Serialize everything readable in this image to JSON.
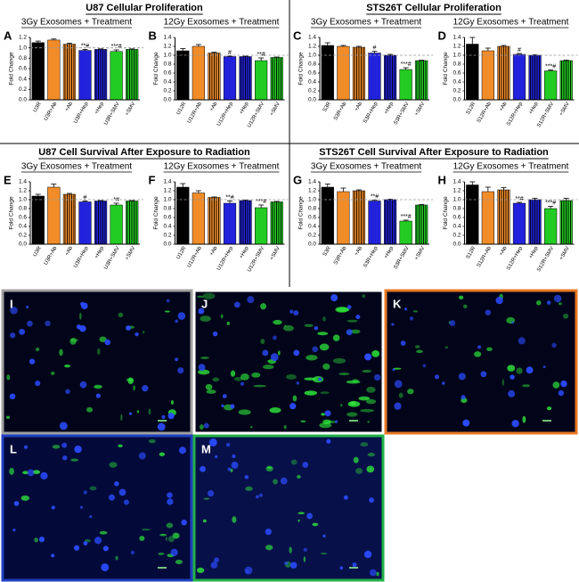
{
  "sections": [
    "U87 Cellular Proliferation",
    "STS26T Cellular Proliferation",
    "U87 Cell Survival After Exposure to Radiation",
    "STS26T Cell Survival After Exposure to Radiation"
  ],
  "chart_data": [
    {
      "type": "bar",
      "panel": "A",
      "title": "3Gy Exosomes + Treatment",
      "y_label": "Fold Change",
      "categories": [
        "U3R",
        "U3R+Ab",
        "+Ab",
        "U3R+Hep",
        "+Hep",
        "U3R+SMV",
        "+SMV"
      ],
      "values": [
        1.1,
        1.15,
        1.07,
        0.95,
        0.97,
        0.93,
        0.97
      ],
      "errors": [
        0.03,
        0.02,
        0.02,
        0.02,
        0.01,
        0.03,
        0.01
      ],
      "annotations": [
        null,
        null,
        null,
        "**#",
        null,
        "***#",
        null
      ],
      "colors": [
        "#000000",
        "#f28c28",
        "#f28c28",
        "#2222dd",
        "#2222dd",
        "#22cc22",
        "#22cc22"
      ],
      "striped": [
        false,
        false,
        true,
        false,
        true,
        false,
        true
      ],
      "reference_line": 1,
      "ylim": [
        0,
        1.2
      ],
      "yticks": [
        {
          "value": 0,
          "label": "0.0"
        },
        0.2,
        0.4,
        0.6,
        0.8,
        {
          "value": 1,
          "label": "1.0"
        },
        1.2
      ]
    },
    {
      "type": "bar",
      "panel": "B",
      "title": "12Gy Exosomes + Treatment",
      "y_label": "Fold Change",
      "categories": [
        "U12R",
        "U12R+Ab",
        "+Ab",
        "U12R+Hep",
        "+Hep",
        "U12R+SMV",
        "+SMV"
      ],
      "values": [
        1.1,
        1.2,
        1.05,
        0.97,
        0.97,
        0.88,
        0.95
      ],
      "errors": [
        0.05,
        0.04,
        0.02,
        0.01,
        0.01,
        0.06,
        0.01
      ],
      "annotations": [
        null,
        null,
        null,
        "#",
        null,
        "**#",
        null
      ],
      "colors": [
        "#000000",
        "#f28c28",
        "#f28c28",
        "#2222dd",
        "#2222dd",
        "#22cc22",
        "#22cc22"
      ],
      "striped": [
        false,
        false,
        true,
        false,
        true,
        false,
        true
      ],
      "reference_line": 1,
      "ylim": [
        0,
        1.4
      ],
      "yticks": [
        {
          "value": 0,
          "label": "0.0"
        },
        0.2,
        0.4,
        0.6,
        0.8,
        {
          "value": 1,
          "label": "1.0"
        },
        1.2,
        1.4
      ]
    },
    {
      "type": "bar",
      "panel": "C",
      "title": "3Gy Exosomes + Treatment",
      "y_label": "Fold Change",
      "categories": [
        "S3R",
        "S3R+Ab",
        "+Ab",
        "S3R+Hep",
        "+Hep",
        "S3R+SMV",
        "+SMV"
      ],
      "values": [
        1.22,
        1.2,
        1.18,
        1.05,
        1.0,
        0.68,
        0.88
      ],
      "errors": [
        0.06,
        0.02,
        0.02,
        0.04,
        0.02,
        0.04,
        0.01
      ],
      "annotations": [
        null,
        null,
        null,
        "#",
        null,
        "***#",
        null
      ],
      "colors": [
        "#000000",
        "#f28c28",
        "#f28c28",
        "#2222dd",
        "#2222dd",
        "#22cc22",
        "#22cc22"
      ],
      "striped": [
        false,
        false,
        true,
        false,
        true,
        false,
        true
      ],
      "reference_line": 1,
      "ylim": [
        0,
        1.4
      ],
      "yticks": [
        {
          "value": 0,
          "label": "0.0"
        },
        0.2,
        0.4,
        0.6,
        0.8,
        {
          "value": 1,
          "label": "1.0"
        },
        1.2,
        1.4
      ]
    },
    {
      "type": "bar",
      "panel": "D",
      "title": "12Gy Exosomes + Treatment",
      "y_label": "Fold Change",
      "categories": [
        "S12R",
        "S12R+Ab",
        "+Ab",
        "S12R+Hep",
        "+Hep",
        "S12R+SMV",
        "+SMV"
      ],
      "values": [
        1.25,
        1.1,
        1.2,
        1.02,
        1.0,
        0.65,
        0.88
      ],
      "errors": [
        0.15,
        0.06,
        0.02,
        0.02,
        0.01,
        0.02,
        0.01
      ],
      "annotations": [
        null,
        null,
        null,
        "#",
        null,
        "***#",
        null
      ],
      "colors": [
        "#000000",
        "#f28c28",
        "#f28c28",
        "#2222dd",
        "#2222dd",
        "#22cc22",
        "#22cc22"
      ],
      "striped": [
        false,
        false,
        true,
        false,
        true,
        false,
        true
      ],
      "reference_line": 1,
      "ylim": [
        0,
        1.4
      ],
      "yticks": [
        {
          "value": 0,
          "label": "0.0"
        },
        0.2,
        0.4,
        0.6,
        0.8,
        {
          "value": 1,
          "label": "1.0"
        },
        1.2,
        1.4
      ]
    },
    {
      "type": "bar",
      "panel": "E",
      "title": "3Gy Exosomes + Treatment",
      "y_label": "Fold Change",
      "categories": [
        "U3R",
        "U3R+Ab",
        "+Ab",
        "U3R+Hep",
        "+Hep",
        "U3R+SMV",
        "+SMV"
      ],
      "values": [
        1.08,
        1.28,
        1.12,
        0.95,
        0.97,
        0.88,
        0.97
      ],
      "errors": [
        0.04,
        0.07,
        0.02,
        0.02,
        0.01,
        0.04,
        0.01
      ],
      "annotations": [
        null,
        null,
        null,
        "#",
        null,
        "*#",
        null
      ],
      "colors": [
        "#000000",
        "#f28c28",
        "#f28c28",
        "#2222dd",
        "#2222dd",
        "#22cc22",
        "#22cc22"
      ],
      "striped": [
        false,
        false,
        true,
        false,
        true,
        false,
        true
      ],
      "reference_line": 1,
      "ylim": [
        0,
        1.4
      ],
      "yticks": [
        {
          "value": 0,
          "label": "0.0"
        },
        0.2,
        0.4,
        0.6,
        0.8,
        {
          "value": 1,
          "label": "1.0"
        },
        1.2,
        1.4
      ]
    },
    {
      "type": "bar",
      "panel": "F",
      "title": "12Gy Exosomes + Treatment",
      "y_label": "Fold Change",
      "categories": [
        "U12R",
        "U12R+Ab",
        "+Ab",
        "U12R+Hep",
        "+Hep",
        "U12R+SMV",
        "+SMV"
      ],
      "values": [
        1.28,
        1.15,
        1.05,
        0.92,
        0.98,
        0.82,
        0.95
      ],
      "errors": [
        0.08,
        0.05,
        0.01,
        0.05,
        0.01,
        0.06,
        0.01
      ],
      "annotations": [
        null,
        null,
        null,
        "**#",
        null,
        "***#",
        null
      ],
      "colors": [
        "#000000",
        "#f28c28",
        "#f28c28",
        "#2222dd",
        "#2222dd",
        "#22cc22",
        "#22cc22"
      ],
      "striped": [
        false,
        false,
        true,
        false,
        true,
        false,
        true
      ],
      "reference_line": 1,
      "ylim": [
        0,
        1.4
      ],
      "yticks": [
        {
          "value": 0,
          "label": "0.0"
        },
        0.2,
        0.4,
        0.6,
        0.8,
        {
          "value": 1,
          "label": "1.0"
        },
        1.2,
        1.4
      ]
    },
    {
      "type": "bar",
      "panel": "G",
      "title": "3Gy Exosomes + Treatment",
      "y_label": "Fold Change",
      "categories": [
        "S3R",
        "S3R+Ab",
        "+Ab",
        "S3R+Hep",
        "+Hep",
        "S3R+SMV",
        "+SMV"
      ],
      "values": [
        1.28,
        1.18,
        1.2,
        0.97,
        1.0,
        0.52,
        0.88
      ],
      "errors": [
        0.07,
        0.08,
        0.02,
        0.02,
        0.01,
        0.02,
        0.01
      ],
      "annotations": [
        null,
        null,
        null,
        "**#",
        null,
        "***#",
        null
      ],
      "colors": [
        "#000000",
        "#f28c28",
        "#f28c28",
        "#2222dd",
        "#2222dd",
        "#22cc22",
        "#22cc22"
      ],
      "striped": [
        false,
        false,
        true,
        false,
        true,
        false,
        true
      ],
      "reference_line": 1,
      "ylim": [
        0,
        1.4
      ],
      "yticks": [
        {
          "value": 0,
          "label": "0.0"
        },
        0.2,
        0.4,
        0.6,
        0.8,
        {
          "value": 1,
          "label": "1.0"
        },
        1.2,
        1.4
      ]
    },
    {
      "type": "bar",
      "panel": "H",
      "title": "12Gy Exosomes + Treatment",
      "y_label": "Fold Change",
      "categories": [
        "S12R",
        "S12R+Ab",
        "+Ab",
        "S12R+Hep",
        "+Hep",
        "S12R+SMV",
        "+SMV"
      ],
      "values": [
        1.33,
        1.18,
        1.22,
        0.92,
        1.0,
        0.8,
        0.98
      ],
      "errors": [
        0.07,
        0.1,
        0.05,
        0.02,
        0.03,
        0.05,
        0.05
      ],
      "annotations": [
        null,
        null,
        null,
        "**#",
        null,
        "***#",
        null
      ],
      "colors": [
        "#000000",
        "#f28c28",
        "#f28c28",
        "#2222dd",
        "#2222dd",
        "#22cc22",
        "#22cc22"
      ],
      "striped": [
        false,
        false,
        true,
        false,
        true,
        false,
        true
      ],
      "reference_line": 1,
      "ylim": [
        0,
        1.4
      ],
      "yticks": [
        {
          "value": 0,
          "label": "0.0"
        },
        0.2,
        0.4,
        0.6,
        0.8,
        {
          "value": 1,
          "label": "1.0"
        },
        1.2,
        1.4
      ]
    }
  ],
  "images": [
    {
      "label": "I",
      "border": "#a0a0a0"
    },
    {
      "label": "J",
      "border": "#ffffff"
    },
    {
      "label": "K",
      "border": "#e87722"
    },
    {
      "label": "L",
      "border": "#1f3fbf"
    },
    {
      "label": "M",
      "border": "#22b04a"
    }
  ]
}
